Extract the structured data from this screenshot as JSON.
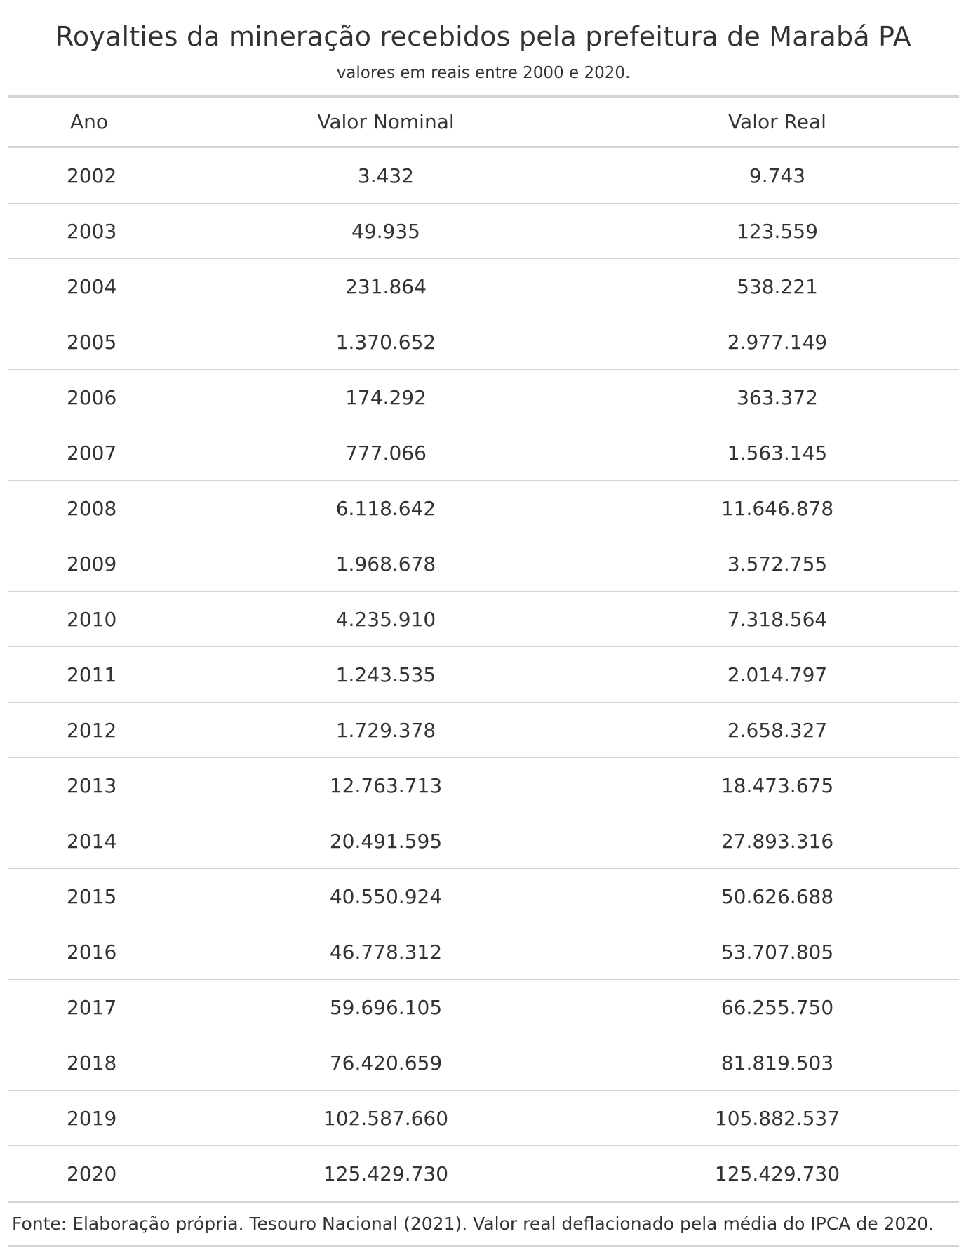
{
  "title": "Royalties da mineração recebidos pela prefeitura de Marabá PA",
  "subtitle": "valores em reais entre 2000 e 2020.",
  "columns": {
    "ano": "Ano",
    "nominal": "Valor Nominal",
    "real": "Valor Real"
  },
  "rows": [
    {
      "ano": "2002",
      "nominal": "3.432",
      "real": "9.743"
    },
    {
      "ano": "2003",
      "nominal": "49.935",
      "real": "123.559"
    },
    {
      "ano": "2004",
      "nominal": "231.864",
      "real": "538.221"
    },
    {
      "ano": "2005",
      "nominal": "1.370.652",
      "real": "2.977.149"
    },
    {
      "ano": "2006",
      "nominal": "174.292",
      "real": "363.372"
    },
    {
      "ano": "2007",
      "nominal": "777.066",
      "real": "1.563.145"
    },
    {
      "ano": "2008",
      "nominal": "6.118.642",
      "real": "11.646.878"
    },
    {
      "ano": "2009",
      "nominal": "1.968.678",
      "real": "3.572.755"
    },
    {
      "ano": "2010",
      "nominal": "4.235.910",
      "real": "7.318.564"
    },
    {
      "ano": "2011",
      "nominal": "1.243.535",
      "real": "2.014.797"
    },
    {
      "ano": "2012",
      "nominal": "1.729.378",
      "real": "2.658.327"
    },
    {
      "ano": "2013",
      "nominal": "12.763.713",
      "real": "18.473.675"
    },
    {
      "ano": "2014",
      "nominal": "20.491.595",
      "real": "27.893.316"
    },
    {
      "ano": "2015",
      "nominal": "40.550.924",
      "real": "50.626.688"
    },
    {
      "ano": "2016",
      "nominal": "46.778.312",
      "real": "53.707.805"
    },
    {
      "ano": "2017",
      "nominal": "59.696.105",
      "real": "66.255.750"
    },
    {
      "ano": "2018",
      "nominal": "76.420.659",
      "real": "81.819.503"
    },
    {
      "ano": "2019",
      "nominal": "102.587.660",
      "real": "105.882.537"
    },
    {
      "ano": "2020",
      "nominal": "125.429.730",
      "real": "125.429.730"
    }
  ],
  "source_note": "Fonte: Elaboração própria. Tesouro Nacional (2021). Valor real deflacionado pela média do IPCA de 2020."
}
